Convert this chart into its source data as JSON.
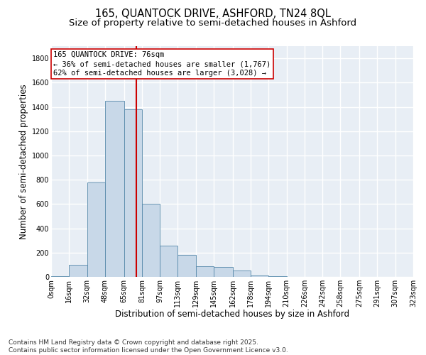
{
  "title_line1": "165, QUANTOCK DRIVE, ASHFORD, TN24 8QL",
  "title_line2": "Size of property relative to semi-detached houses in Ashford",
  "xlabel": "Distribution of semi-detached houses by size in Ashford",
  "ylabel": "Number of semi-detached properties",
  "bar_color": "#c8d8e8",
  "bar_edge_color": "#5588aa",
  "background_color": "#e8eef5",
  "grid_color": "#ffffff",
  "annotation_line_color": "#cc0000",
  "annotation_box_color": "#cc0000",
  "annotation_text": "165 QUANTOCK DRIVE: 76sqm\n← 36% of semi-detached houses are smaller (1,767)\n62% of semi-detached houses are larger (3,028) →",
  "property_size": 76,
  "bin_edges": [
    0,
    16,
    32,
    48,
    65,
    81,
    97,
    113,
    129,
    145,
    162,
    178,
    194,
    210,
    226,
    242,
    258,
    275,
    291,
    307,
    323
  ],
  "bar_heights": [
    5,
    100,
    775,
    1450,
    1380,
    605,
    255,
    180,
    90,
    80,
    55,
    10,
    5,
    2,
    2,
    1,
    1,
    0,
    0,
    0
  ],
  "ylim": [
    0,
    1900
  ],
  "yticks": [
    0,
    200,
    400,
    600,
    800,
    1000,
    1200,
    1400,
    1600,
    1800
  ],
  "tick_labels": [
    "0sqm",
    "16sqm",
    "32sqm",
    "48sqm",
    "65sqm",
    "81sqm",
    "97sqm",
    "113sqm",
    "129sqm",
    "145sqm",
    "162sqm",
    "178sqm",
    "194sqm",
    "210sqm",
    "226sqm",
    "242sqm",
    "258sqm",
    "275sqm",
    "291sqm",
    "307sqm",
    "323sqm"
  ],
  "footer_text": "Contains HM Land Registry data © Crown copyright and database right 2025.\nContains public sector information licensed under the Open Government Licence v3.0.",
  "title_fontsize": 10.5,
  "subtitle_fontsize": 9.5,
  "axis_label_fontsize": 8.5,
  "tick_fontsize": 7,
  "annotation_fontsize": 7.5,
  "footer_fontsize": 6.5
}
